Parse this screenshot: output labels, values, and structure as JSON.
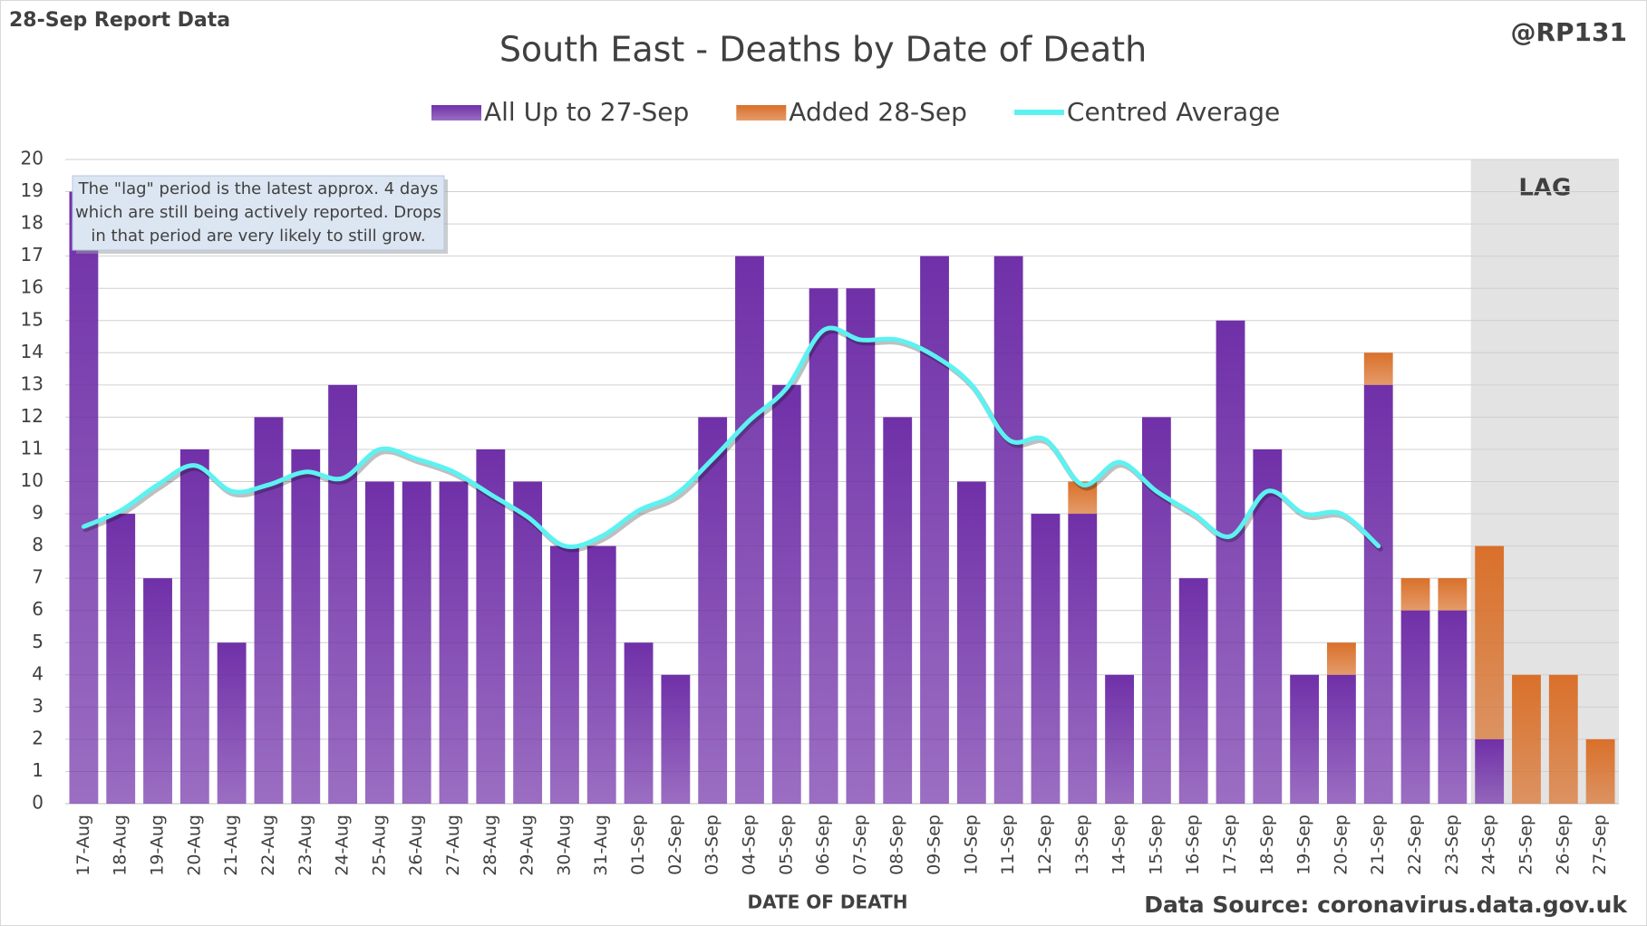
{
  "chart_data": {
    "type": "bar",
    "title": "South East - Deaths by Date of Death",
    "corner_label": "28-Sep Report Data",
    "handle": "@RP131",
    "x_label": "DATE OF DEATH",
    "source": "Data Source: coronavirus.data.gov.uk",
    "lag_label": "LAG",
    "note": [
      "The \"lag\" period is the latest approx. 4 days",
      "which are still being actively reported.  Drops",
      "in that period are very likely to still grow."
    ],
    "categories": [
      "17-Aug",
      "18-Aug",
      "19-Aug",
      "20-Aug",
      "21-Aug",
      "22-Aug",
      "23-Aug",
      "24-Aug",
      "25-Aug",
      "26-Aug",
      "27-Aug",
      "28-Aug",
      "29-Aug",
      "30-Aug",
      "31-Aug",
      "01-Sep",
      "02-Sep",
      "03-Sep",
      "04-Sep",
      "05-Sep",
      "06-Sep",
      "07-Sep",
      "08-Sep",
      "09-Sep",
      "10-Sep",
      "11-Sep",
      "12-Sep",
      "13-Sep",
      "14-Sep",
      "15-Sep",
      "16-Sep",
      "17-Sep",
      "18-Sep",
      "19-Sep",
      "20-Sep",
      "21-Sep",
      "22-Sep",
      "23-Sep",
      "24-Sep",
      "25-Sep",
      "26-Sep",
      "27-Sep"
    ],
    "series": [
      {
        "name": "All Up to 27-Sep",
        "color": "#7030a8",
        "stacked": true,
        "values": [
          19,
          9,
          7,
          11,
          5,
          12,
          11,
          13,
          10,
          10,
          10,
          11,
          10,
          8,
          8,
          5,
          4,
          12,
          17,
          13,
          16,
          16,
          12,
          17,
          10,
          17,
          9,
          9,
          4,
          12,
          7,
          15,
          11,
          4,
          4,
          13,
          6,
          6,
          2,
          0,
          0,
          0
        ]
      },
      {
        "name": "Added 28-Sep",
        "color": "#d9702a",
        "stacked": true,
        "values": [
          0,
          0,
          0,
          0,
          0,
          0,
          0,
          0,
          0,
          0,
          0,
          0,
          0,
          0,
          0,
          0,
          0,
          0,
          0,
          0,
          0,
          0,
          0,
          0,
          0,
          0,
          0,
          1,
          0,
          0,
          0,
          0,
          0,
          0,
          1,
          1,
          1,
          1,
          6,
          4,
          4,
          2
        ]
      },
      {
        "name": "Centred Average",
        "color": "#5cf2f2",
        "type": "line",
        "values": [
          8.6,
          9.1,
          9.9,
          10.5,
          9.7,
          9.9,
          10.3,
          10.1,
          11.0,
          10.7,
          10.3,
          9.6,
          8.9,
          8.0,
          8.3,
          9.1,
          9.6,
          10.7,
          11.9,
          12.9,
          14.7,
          14.4,
          14.4,
          13.9,
          13.0,
          11.3,
          11.3,
          9.9,
          10.6,
          9.7,
          9.0,
          8.3,
          9.7,
          9.0,
          9.0,
          8.0,
          null,
          null,
          null,
          null,
          null,
          null
        ]
      }
    ],
    "lag_start": "24-Sep",
    "ylim": [
      0,
      20
    ],
    "yticks": [
      0,
      1,
      2,
      3,
      4,
      5,
      6,
      7,
      8,
      9,
      10,
      11,
      12,
      13,
      14,
      15,
      16,
      17,
      18,
      19,
      20
    ],
    "grid": true,
    "legend": "top"
  }
}
